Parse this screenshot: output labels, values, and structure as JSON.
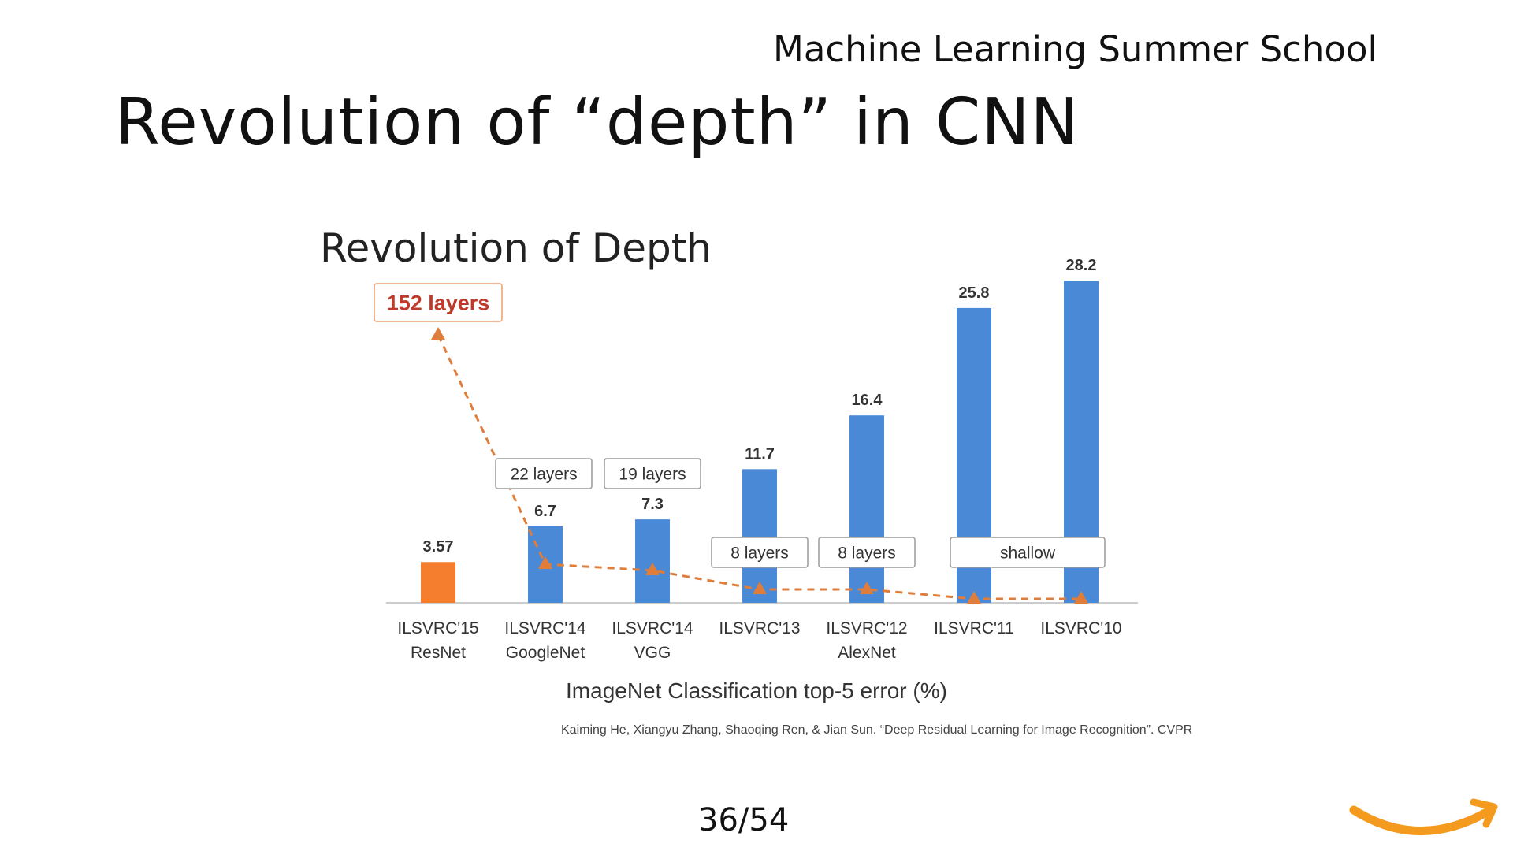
{
  "header": {
    "school": "Machine Learning Summer School",
    "title": "Revolution of “depth” in CNN"
  },
  "chart_data": {
    "type": "bar",
    "title": "Revolution of Depth",
    "xlabel": "ImageNet Classification top-5 error (%)",
    "ylabel": "",
    "ylim": [
      0,
      30
    ],
    "categories": [
      [
        "ILSVRC'15",
        "ResNet"
      ],
      [
        "ILSVRC'14",
        "GoogleNet"
      ],
      [
        "ILSVRC'14",
        "VGG"
      ],
      [
        "ILSVRC'13",
        ""
      ],
      [
        "ILSVRC'12",
        "AlexNet"
      ],
      [
        "ILSVRC'11",
        ""
      ],
      [
        "ILSVRC'10",
        ""
      ]
    ],
    "values": [
      3.57,
      6.7,
      7.3,
      11.7,
      16.4,
      25.8,
      28.2
    ],
    "value_labels": [
      "3.57",
      "6.7",
      "7.3",
      "11.7",
      "16.4",
      "25.8",
      "28.2"
    ],
    "bar_colors": [
      "#f47e2e",
      "#4a89d5",
      "#4a89d5",
      "#4a89d5",
      "#4a89d5",
      "#4a89d5",
      "#4a89d5"
    ],
    "depth_labels": [
      "152 layers",
      "22 layers",
      "19 layers",
      "8 layers",
      "8 layers",
      "shallow"
    ],
    "depth_line_color": "#e07d3a",
    "highlight_color": "#c0392b",
    "legend": "none",
    "grid": false
  },
  "citation": "Kaiming He, Xiangyu Zhang, Shaoqing Ren, & Jian Sun. “Deep Residual Learning for Image Recognition”. CVPR",
  "page": "36/54",
  "colors": {
    "logo_orange": "#f39a1f"
  }
}
